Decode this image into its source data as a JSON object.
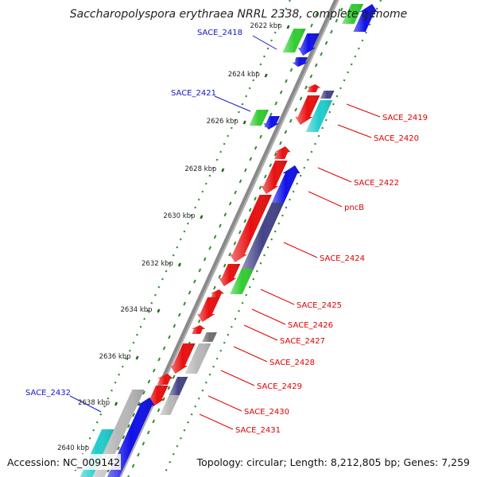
{
  "title": "Saccharopolyspora erythraea NRRL 2338, complete genome",
  "footer": {
    "accession": "Accession: NC_009142",
    "topology": "Topology: circular; Length: 8,212,805 bp; Genes: 7,259"
  },
  "colors": {
    "backbone": "#8a8a8a",
    "gc_dots": "#2e8b2e",
    "minus_label": "#1414c8",
    "plus_label": "#e00000",
    "feature_red": "#e81010",
    "feature_blue": "#1010e8",
    "feature_green": "#33cc33",
    "feature_cyan": "#22cccc",
    "feature_purple": "#444488",
    "feature_gray": "#b8b8b8",
    "feature_dark_gray": "#707070"
  },
  "ticks": [
    {
      "label": "2622 kbp"
    },
    {
      "label": "2624 kbp"
    },
    {
      "label": "2626 kbp"
    },
    {
      "label": "2628 kbp"
    },
    {
      "label": "2630 kbp"
    },
    {
      "label": "2632 kbp"
    },
    {
      "label": "2634 kbp"
    },
    {
      "label": "2636 kbp"
    },
    {
      "label": "2638 kbp"
    },
    {
      "label": "2640 kbp"
    }
  ],
  "labels_minus": [
    {
      "text": "SACE_2418"
    },
    {
      "text": "SACE_2421"
    },
    {
      "text": "SACE_2432"
    }
  ],
  "labels_plus": [
    {
      "text": "SACE_2419"
    },
    {
      "text": "SACE_2420"
    },
    {
      "text": "SACE_2422"
    },
    {
      "text": "pncB"
    },
    {
      "text": "SACE_2424"
    },
    {
      "text": "SACE_2425"
    },
    {
      "text": "SACE_2426"
    },
    {
      "text": "SACE_2427"
    },
    {
      "text": "SACE_2428"
    },
    {
      "text": "SACE_2429"
    },
    {
      "text": "SACE_2430"
    },
    {
      "text": "SACE_2431"
    }
  ],
  "features": [
    {
      "name": "feature-green-top",
      "color": "feature_green"
    },
    {
      "name": "feature-blue-top",
      "color": "feature_blue"
    },
    {
      "name": "feature-green-2418",
      "color": "feature_green"
    },
    {
      "name": "feature-blue-2418",
      "color": "feature_blue"
    },
    {
      "name": "feature-blue-small",
      "color": "feature_blue"
    },
    {
      "name": "feature-red-2419-small",
      "color": "feature_red"
    },
    {
      "name": "feature-purple-2419",
      "color": "feature_purple"
    },
    {
      "name": "feature-red-2419",
      "color": "feature_red"
    },
    {
      "name": "feature-cyan-2420",
      "color": "feature_cyan"
    },
    {
      "name": "feature-green-2421",
      "color": "feature_green"
    },
    {
      "name": "feature-blue-2421",
      "color": "feature_blue"
    },
    {
      "name": "feature-red-2422-small",
      "color": "feature_red"
    },
    {
      "name": "feature-red-2422",
      "color": "feature_red"
    },
    {
      "name": "feature-blue-pncb",
      "color": "feature_blue"
    },
    {
      "name": "feature-red-2424",
      "color": "feature_red"
    },
    {
      "name": "feature-purple-2424",
      "color": "feature_purple"
    },
    {
      "name": "feature-red-2425",
      "color": "feature_red"
    },
    {
      "name": "feature-green-2425",
      "color": "feature_green"
    },
    {
      "name": "feature-red-2426-small",
      "color": "feature_red"
    },
    {
      "name": "feature-red-2427",
      "color": "feature_red"
    },
    {
      "name": "feature-red-2428-small",
      "color": "feature_red"
    },
    {
      "name": "feature-darkgray-2428",
      "color": "feature_dark_gray"
    },
    {
      "name": "feature-red-2428",
      "color": "feature_red"
    },
    {
      "name": "feature-gray-2428",
      "color": "feature_gray"
    },
    {
      "name": "feature-red-2429",
      "color": "feature_red"
    },
    {
      "name": "feature-purple-2430",
      "color": "feature_purple"
    },
    {
      "name": "feature-red-2430",
      "color": "feature_red"
    },
    {
      "name": "feature-gray-2430",
      "color": "feature_gray"
    },
    {
      "name": "feature-gray-2432",
      "color": "feature_gray"
    },
    {
      "name": "feature-blue-2432",
      "color": "feature_blue"
    },
    {
      "name": "feature-cyan-2432",
      "color": "feature_cyan"
    }
  ]
}
